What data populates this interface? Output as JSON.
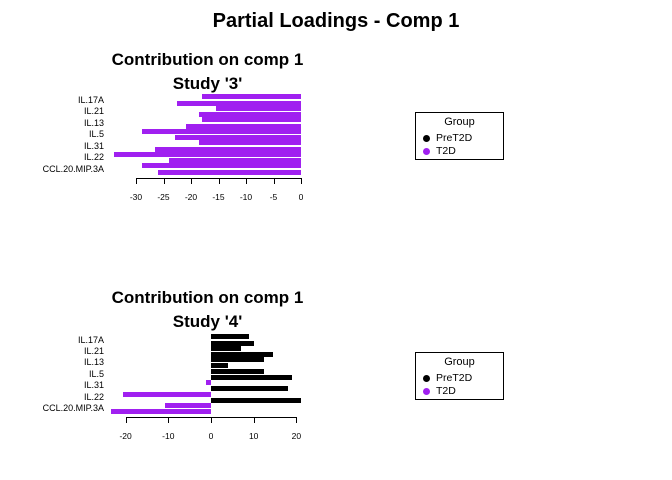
{
  "main_title": "Partial Loadings - Comp 1",
  "colors": {
    "purple": "#A020F0",
    "black": "#000000",
    "background": "#ffffff"
  },
  "legend": {
    "title": "Group",
    "entries": [
      {
        "label": "PreT2D",
        "color": "#000000"
      },
      {
        "label": "T2D",
        "color": "#A020F0"
      }
    ]
  },
  "chart_data": [
    {
      "type": "bar",
      "orientation": "horizontal",
      "title": "Contribution on comp 1",
      "subtitle": "Study '3'",
      "xlabel": "",
      "x_ticks": [
        -30,
        -25,
        -20,
        -15,
        -10,
        -5,
        0
      ],
      "xlim": [
        -35,
        1
      ],
      "grid": false,
      "categories": [
        "IL.17A",
        "IL.21",
        "IL.13",
        "IL.5",
        "IL.31",
        "IL.22",
        "CCL.20.MIP.3A"
      ],
      "series": [
        {
          "name": "upper-bar",
          "values": [
            -18,
            -15.5,
            -18,
            -29,
            -18.5,
            -34,
            -29
          ]
        },
        {
          "name": "lower-bar",
          "values": [
            -22.5,
            -18.5,
            -21,
            -23,
            -26.5,
            -24,
            -26
          ]
        }
      ],
      "bar_colors": [
        [
          "#A020F0",
          "#A020F0"
        ],
        [
          "#A020F0",
          "#A020F0"
        ],
        [
          "#A020F0",
          "#A020F0"
        ],
        [
          "#A020F0",
          "#A020F0"
        ],
        [
          "#A020F0",
          "#A020F0"
        ],
        [
          "#A020F0",
          "#A020F0"
        ],
        [
          "#A020F0",
          "#A020F0"
        ]
      ]
    },
    {
      "type": "bar",
      "orientation": "horizontal",
      "title": "Contribution on comp 1",
      "subtitle": "Study '4'",
      "xlabel": "",
      "x_ticks": [
        -20,
        -10,
        0,
        10,
        20
      ],
      "xlim": [
        -24,
        22
      ],
      "grid": false,
      "categories": [
        "IL.17A",
        "IL.21",
        "IL.13",
        "IL.5",
        "IL.31",
        "IL.22",
        "CCL.20.MIP.3A"
      ],
      "series": [
        {
          "name": "upper-bar",
          "values": [
            9,
            7,
            12.5,
            12.5,
            -1.2,
            -20.5,
            -10.8
          ]
        },
        {
          "name": "lower-bar",
          "values": [
            10,
            14.5,
            4,
            19,
            18,
            21,
            -23.4
          ]
        }
      ],
      "bar_colors": [
        [
          "#000000",
          "#000000"
        ],
        [
          "#000000",
          "#000000"
        ],
        [
          "#000000",
          "#000000"
        ],
        [
          "#000000",
          "#000000"
        ],
        [
          "#A020F0",
          "#000000"
        ],
        [
          "#A020F0",
          "#000000"
        ],
        [
          "#A020F0",
          "#A020F0"
        ]
      ]
    }
  ]
}
